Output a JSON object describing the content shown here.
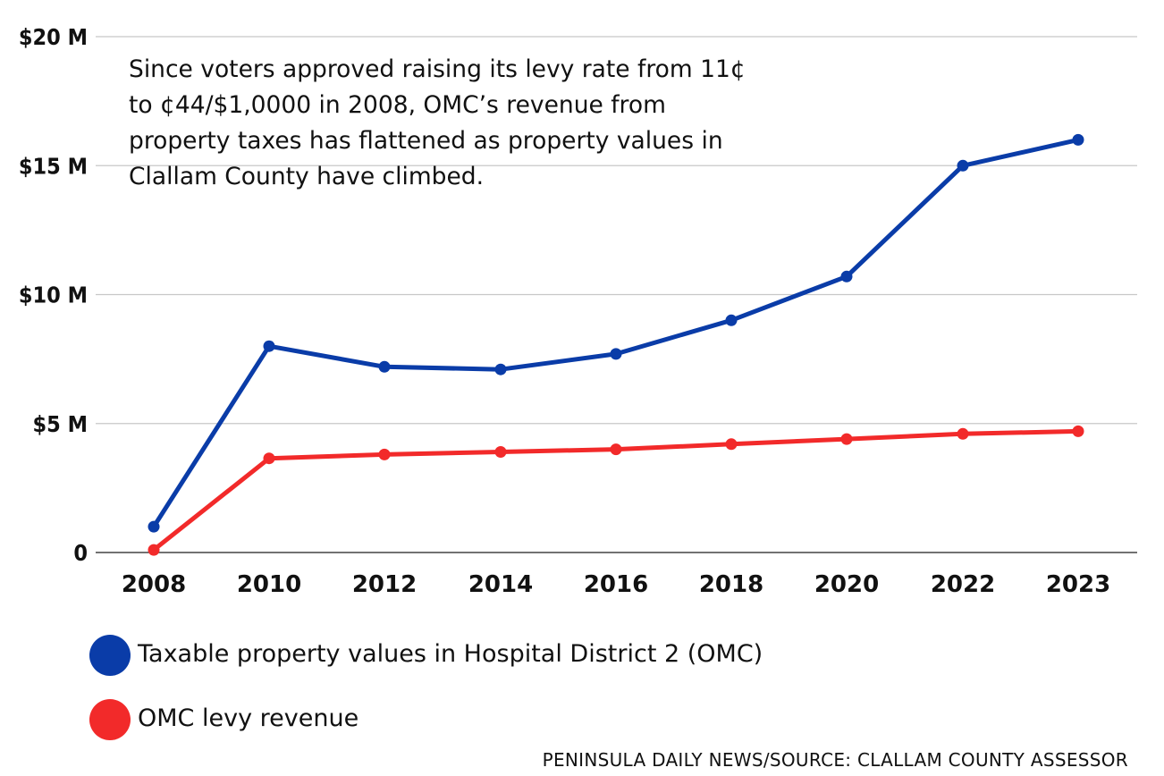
{
  "chart_data": {
    "type": "line",
    "title": "",
    "annotation": [
      "Since voters approved raising its levy rate from 11¢",
      "to ¢44/$1,0000 in 2008, OMC’s revenue from",
      "property taxes has flattened as property values in",
      "Clallam County have climbed."
    ],
    "categories": [
      "2008",
      "2010",
      "2012",
      "2014",
      "2016",
      "2018",
      "2020",
      "2022",
      "2023"
    ],
    "y_ticks": [
      {
        "value": 0,
        "label": "0"
      },
      {
        "value": 5,
        "label": "$5 M"
      },
      {
        "value": 10,
        "label": "$10 M"
      },
      {
        "value": 15,
        "label": "$15 M"
      },
      {
        "value": 20,
        "label": "$20 M"
      }
    ],
    "ylim": [
      0,
      20
    ],
    "y_unit": "millions of dollars",
    "grid": true,
    "legend_position": "bottom-left",
    "series": [
      {
        "name": "Taxable property values in Hospital District 2 (OMC)",
        "color": "#0a3ca8",
        "values": [
          1.0,
          8.0,
          7.2,
          7.1,
          7.7,
          9.0,
          10.7,
          15.0,
          16.0
        ]
      },
      {
        "name": "OMC levy revenue",
        "color": "#f22a2a",
        "values": [
          0.1,
          3.65,
          3.8,
          3.9,
          4.0,
          4.2,
          4.4,
          4.6,
          4.7
        ]
      }
    ],
    "source": "PENINSULA DAILY NEWS/SOURCE: CLALLAM COUNTY ASSESSOR"
  }
}
